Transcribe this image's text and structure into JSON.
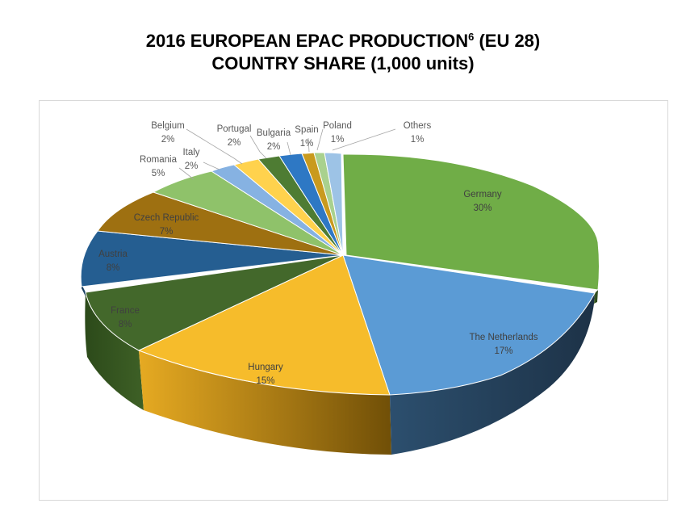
{
  "title": {
    "line1_main": "2016 EUROPEAN EPAC PRODUCTION",
    "line1_sup": "6",
    "line1_tail": " (EU 28)",
    "line2": "COUNTRY SHARE (1,000 units)"
  },
  "chart_data": {
    "type": "pie",
    "style": "3d-exploded",
    "title": "2016 EUROPEAN EPAC PRODUCTION6 (EU 28) COUNTRY SHARE (1,000 units)",
    "slices": [
      {
        "label": "Germany",
        "percent_label": "30%",
        "value": 30,
        "color": "#70ad47"
      },
      {
        "label": "The Netherlands",
        "percent_label": "17%",
        "value": 17,
        "color": "#5b9bd5"
      },
      {
        "label": "Hungary",
        "percent_label": "15%",
        "value": 15,
        "color": "#f6bc2b"
      },
      {
        "label": "France",
        "percent_label": "8%",
        "value": 8,
        "color": "#43682b"
      },
      {
        "label": "Austria",
        "percent_label": "8%",
        "value": 8,
        "color": "#255e91"
      },
      {
        "label": "Czech Republic",
        "percent_label": "7%",
        "value": 7,
        "color": "#9e7011"
      },
      {
        "label": "Romania",
        "percent_label": "5%",
        "value": 5,
        "color": "#8fc26a"
      },
      {
        "label": "Italy",
        "percent_label": "2%",
        "value": 2,
        "color": "#86b2e2"
      },
      {
        "label": "Belgium",
        "percent_label": "2%",
        "value": 2,
        "color": "#ffd24d"
      },
      {
        "label": "Portugal",
        "percent_label": "2%",
        "value": 2,
        "color": "#4e7c33"
      },
      {
        "label": "Bulgaria",
        "percent_label": "2%",
        "value": 2,
        "color": "#2e78c4"
      },
      {
        "label": "Spain",
        "percent_label": "1%",
        "value": 1,
        "color": "#c99a1e"
      },
      {
        "label": "Poland",
        "percent_label": "1%",
        "value": 1,
        "color": "#a9d18e"
      },
      {
        "label": "Others",
        "percent_label": "1%",
        "value": 1,
        "color": "#9dc3e6"
      }
    ]
  }
}
